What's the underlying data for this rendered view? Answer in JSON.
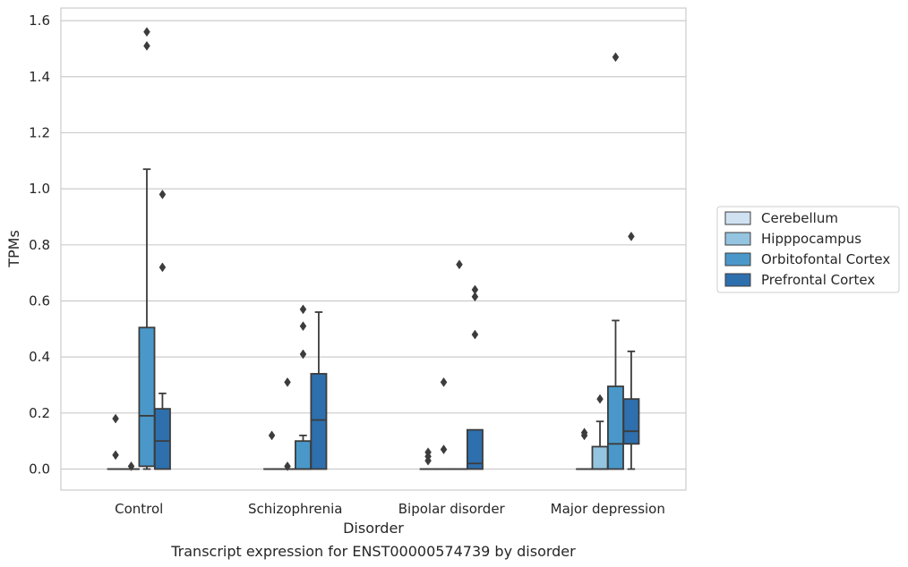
{
  "chart_data": {
    "type": "box",
    "ylabel": "TPMs",
    "xlabel": "Disorder",
    "caption": "Transcript expression for ENST00000574739 by disorder",
    "ylim": [
      -0.075,
      1.645
    ],
    "yticks": [
      0.0,
      0.2,
      0.4,
      0.6,
      0.8,
      1.0,
      1.2,
      1.4,
      1.6
    ],
    "ytick_labels": [
      "0.0",
      "0.2",
      "0.4",
      "0.6",
      "0.8",
      "1.0",
      "1.2",
      "1.4",
      "1.6"
    ],
    "grid": true,
    "legend_position": "right",
    "categories": [
      "Control",
      "Schizophrenia",
      "Bipolar disorder",
      "Major depression"
    ],
    "series": [
      {
        "name": "Cerebellum",
        "color": "#d0e1f2",
        "boxes": [
          {
            "q1": 0.0,
            "median": 0.0,
            "q3": 0.0,
            "whisker_low": 0.0,
            "whisker_high": 0.0,
            "outliers": [
              0.18,
              0.05
            ]
          },
          {
            "q1": 0.0,
            "median": 0.0,
            "q3": 0.0,
            "whisker_low": 0.0,
            "whisker_high": 0.0,
            "outliers": [
              0.12
            ]
          },
          {
            "q1": 0.0,
            "median": 0.0,
            "q3": 0.0,
            "whisker_low": 0.0,
            "whisker_high": 0.0,
            "outliers": [
              0.06,
              0.045,
              0.03
            ]
          },
          {
            "q1": 0.0,
            "median": 0.0,
            "q3": 0.0,
            "whisker_low": 0.0,
            "whisker_high": 0.0,
            "outliers": [
              0.13,
              0.12
            ]
          }
        ]
      },
      {
        "name": "Hipppocampus",
        "color": "#94c4df",
        "boxes": [
          {
            "q1": 0.0,
            "median": 0.0,
            "q3": 0.0,
            "whisker_low": 0.0,
            "whisker_high": 0.0,
            "outliers": [
              0.01
            ]
          },
          {
            "q1": 0.0,
            "median": 0.0,
            "q3": 0.0,
            "whisker_low": 0.0,
            "whisker_high": 0.0,
            "outliers": [
              0.31,
              0.01
            ]
          },
          {
            "q1": 0.0,
            "median": 0.0,
            "q3": 0.0,
            "whisker_low": 0.0,
            "whisker_high": 0.0,
            "outliers": [
              0.31,
              0.07
            ]
          },
          {
            "q1": 0.0,
            "median": 0.0,
            "q3": 0.08,
            "whisker_low": 0.0,
            "whisker_high": 0.17,
            "outliers": [
              0.25
            ]
          }
        ]
      },
      {
        "name": "Orbitofontal Cortex",
        "color": "#4a98c9",
        "boxes": [
          {
            "q1": 0.01,
            "median": 0.19,
            "q3": 0.505,
            "whisker_low": 0.0,
            "whisker_high": 1.07,
            "outliers": [
              1.56,
              1.51
            ]
          },
          {
            "q1": 0.0,
            "median": 0.0,
            "q3": 0.1,
            "whisker_low": 0.0,
            "whisker_high": 0.12,
            "outliers": [
              0.57,
              0.51,
              0.41
            ]
          },
          {
            "q1": 0.0,
            "median": 0.0,
            "q3": 0.0,
            "whisker_low": 0.0,
            "whisker_high": 0.0,
            "outliers": [
              0.73
            ]
          },
          {
            "q1": 0.0,
            "median": 0.09,
            "q3": 0.295,
            "whisker_low": 0.0,
            "whisker_high": 0.53,
            "outliers": [
              1.47
            ]
          }
        ]
      },
      {
        "name": "Prefrontal Cortex",
        "color": "#2e6fad",
        "boxes": [
          {
            "q1": 0.0,
            "median": 0.1,
            "q3": 0.215,
            "whisker_low": 0.0,
            "whisker_high": 0.27,
            "outliers": [
              0.98,
              0.72
            ]
          },
          {
            "q1": 0.0,
            "median": 0.175,
            "q3": 0.34,
            "whisker_low": 0.0,
            "whisker_high": 0.56,
            "outliers": []
          },
          {
            "q1": 0.0,
            "median": 0.02,
            "q3": 0.14,
            "whisker_low": 0.0,
            "whisker_high": 0.14,
            "outliers": [
              0.64,
              0.615,
              0.48
            ]
          },
          {
            "q1": 0.09,
            "median": 0.135,
            "q3": 0.25,
            "whisker_low": 0.0,
            "whisker_high": 0.42,
            "outliers": [
              0.83
            ]
          }
        ]
      }
    ]
  }
}
